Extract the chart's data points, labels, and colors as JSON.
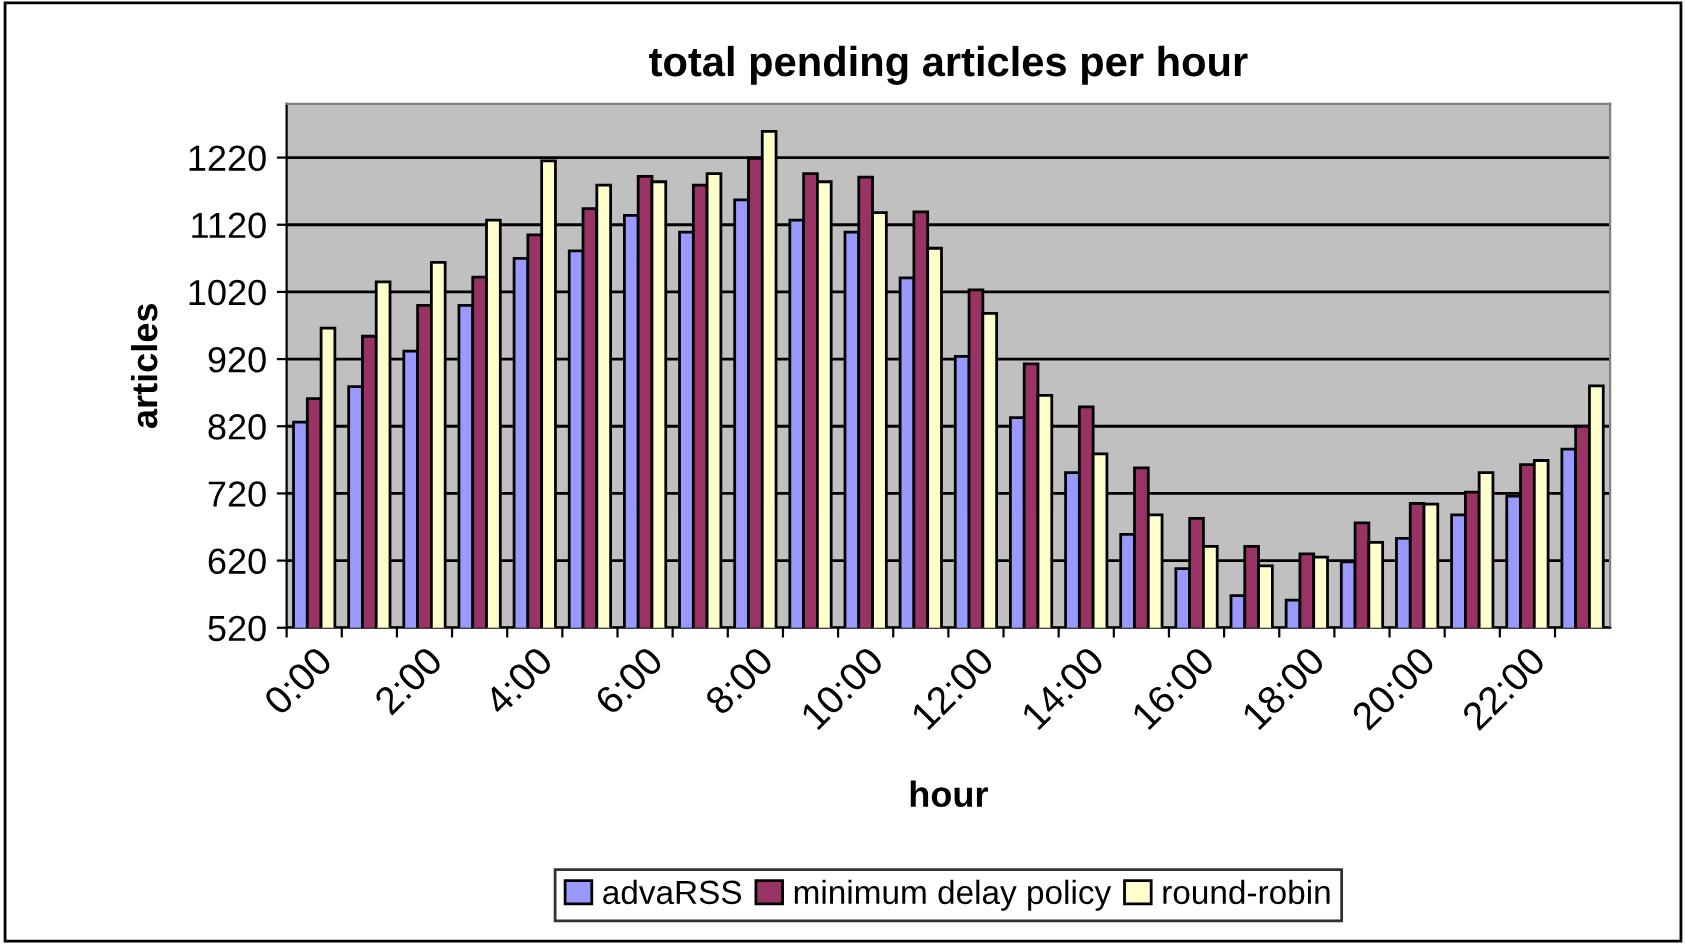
{
  "chart_data": {
    "type": "bar",
    "title": "total pending articles per hour",
    "xlabel": "hour",
    "ylabel": "articles",
    "categories": [
      "0:00",
      null,
      "2:00",
      null,
      "4:00",
      null,
      "6:00",
      null,
      "8:00",
      null,
      "10:00",
      null,
      "12:00",
      null,
      "14:00",
      null,
      "16:00",
      null,
      "18:00",
      null,
      "20:00",
      null,
      "22:00",
      null
    ],
    "series": [
      {
        "name": "advaRSS",
        "color": "#9999ff",
        "values": [
          826,
          879,
          932,
          1000,
          1070,
          1081,
          1134,
          1109,
          1157,
          1127,
          1109,
          1041,
          924,
          833,
          751,
          659,
          608,
          568,
          561,
          618,
          653,
          688,
          716,
          786
        ]
      },
      {
        "name": "minimum delay policy",
        "color": "#993366",
        "values": [
          861,
          954,
          1000,
          1042,
          1105,
          1144,
          1192,
          1179,
          1219,
          1196,
          1191,
          1139,
          1023,
          913,
          849,
          758,
          683,
          641,
          630,
          676,
          705,
          722,
          763,
          820
        ]
      },
      {
        "name": "round-robin",
        "color": "#ffffcc",
        "values": [
          966,
          1035,
          1064,
          1127,
          1215,
          1179,
          1184,
          1196,
          1259,
          1184,
          1138,
          1085,
          988,
          866,
          779,
          688,
          641,
          612,
          625,
          647,
          704,
          751,
          769,
          880
        ]
      }
    ],
    "ylim": [
      520,
      1300
    ],
    "yticks": [
      520,
      620,
      720,
      820,
      920,
      1020,
      1120,
      1220
    ],
    "grid": "y",
    "legend": "bottom"
  }
}
